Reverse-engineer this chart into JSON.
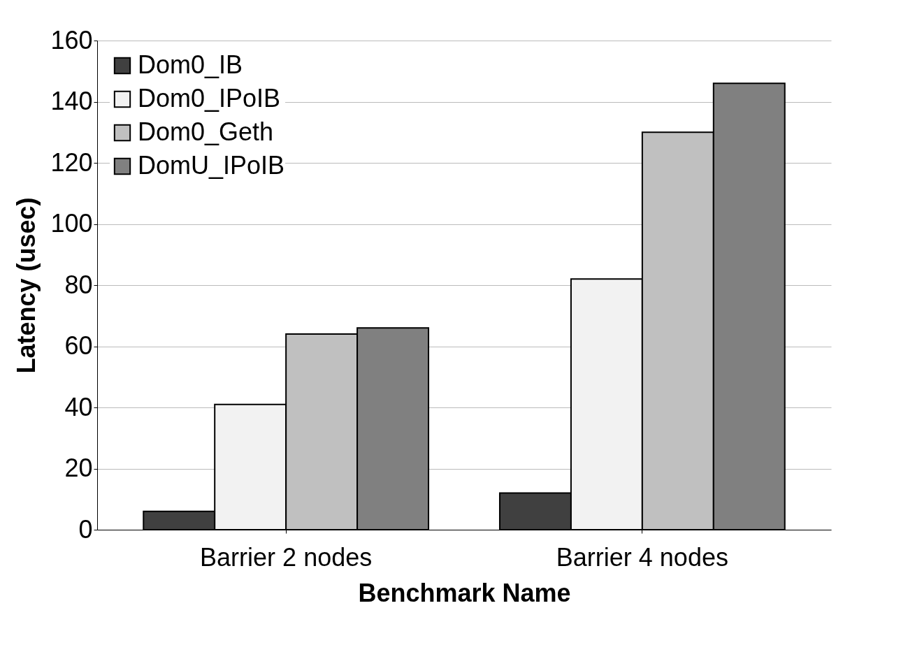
{
  "chart_data": {
    "type": "bar",
    "xlabel": "Benchmark Name",
    "ylabel": "Latency (usec)",
    "categories": [
      "Barrier 2 nodes",
      "Barrier 4 nodes"
    ],
    "series": [
      {
        "name": "Dom0_IB",
        "color": "#404040",
        "values": [
          6,
          12
        ]
      },
      {
        "name": "Dom0_IPoIB",
        "color": "#f2f2f2",
        "values": [
          41,
          82
        ]
      },
      {
        "name": "Dom0_Geth",
        "color": "#c0c0c0",
        "values": [
          64,
          130
        ]
      },
      {
        "name": "DomU_IPoIB",
        "color": "#808080",
        "values": [
          66,
          146
        ]
      }
    ],
    "ylim": [
      0,
      160
    ],
    "yticks": [
      0,
      20,
      40,
      60,
      80,
      100,
      120,
      140,
      160
    ],
    "grid": "y",
    "legend": "top left"
  }
}
